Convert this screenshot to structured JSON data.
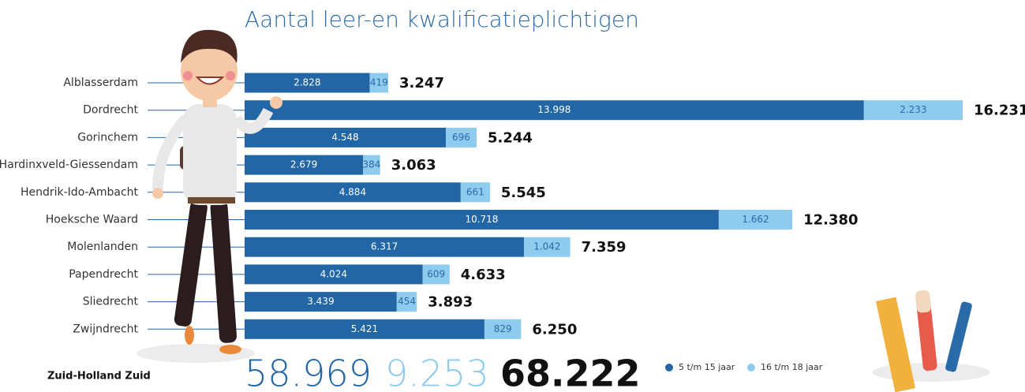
{
  "chart_data": {
    "type": "bar",
    "orientation": "horizontal",
    "stacked": true,
    "title": "Aantal leer-en kwalificatieplichtigen",
    "categories": [
      "Alblasserdam",
      "Dordrecht",
      "Gorinchem",
      "Hardinxveld-Giessendam",
      "Hendrik-Ido-Ambacht",
      "Hoeksche Waard",
      "Molenlanden",
      "Papendrecht",
      "Sliedrecht",
      "Zwijndrecht"
    ],
    "series": [
      {
        "name": "5 t/m 15 jaar",
        "color": "#2266a5",
        "values": [
          2828,
          13998,
          4548,
          2679,
          4884,
          10718,
          6317,
          4024,
          3439,
          5421
        ],
        "value_labels": [
          "2.828",
          "13.998",
          "4.548",
          "2.679",
          "4.884",
          "10.718",
          "6.317",
          "4.024",
          "3.439",
          "5.421"
        ]
      },
      {
        "name": "16 t/m 18 jaar",
        "color": "#8ecbef",
        "values": [
          419,
          2233,
          696,
          384,
          661,
          1662,
          1042,
          609,
          454,
          829
        ],
        "value_labels": [
          "419",
          "2.233",
          "696",
          "384",
          "661",
          "1.662",
          "1.042",
          "609",
          "454",
          "829"
        ]
      }
    ],
    "totals": {
      "values": [
        3247,
        16231,
        5244,
        3063,
        5545,
        12380,
        7359,
        4633,
        3893,
        6250
      ],
      "value_labels": [
        "3.247",
        "16.231",
        "5.244",
        "3.063",
        "5.545",
        "12.380",
        "7.359",
        "4.633",
        "3.893",
        "6.250"
      ]
    },
    "summary": {
      "label": "Zuid-Holland Zuid",
      "values": [
        58969,
        9253,
        68222
      ],
      "value_labels": [
        "58.969",
        "9.253",
        "68.222"
      ]
    }
  }
}
